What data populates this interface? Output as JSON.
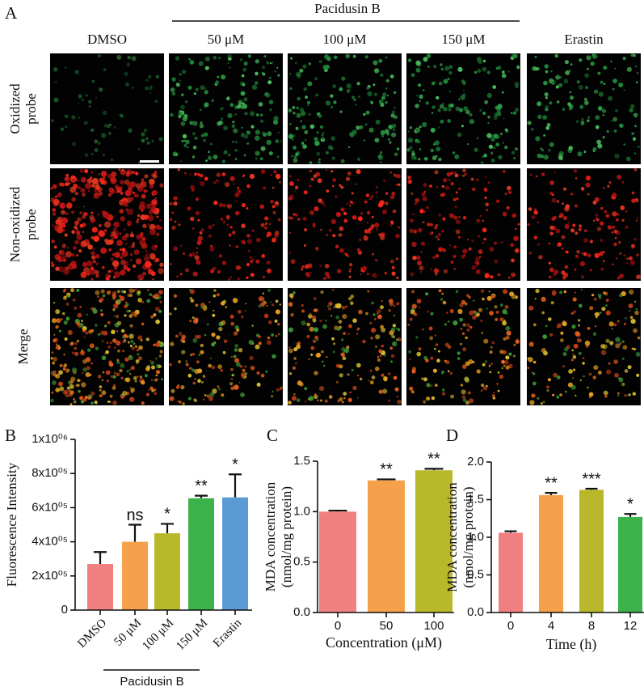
{
  "panel_a": {
    "label": "A",
    "group_label": "Pacidusin B",
    "columns": [
      "DMSO",
      "50 μM",
      "100 μM",
      "150 μM",
      "Erastin"
    ],
    "rows": [
      [
        "Oxidized",
        "probe"
      ],
      [
        "Non-oxidized",
        "probe"
      ],
      [
        "Merge"
      ]
    ]
  },
  "chart_data": [
    {
      "type": "bar",
      "panel_label": "B",
      "ylabel": [
        "Fluorescence Intensity"
      ],
      "categories": [
        "DMSO",
        "50 μM",
        "100 μM",
        "150 μM",
        "Erastin"
      ],
      "values": [
        270000,
        400000,
        450000,
        655000,
        660000
      ],
      "errors": [
        70000,
        100000,
        55000,
        15000,
        135000
      ],
      "annotations": [
        null,
        "ns",
        "*",
        "**",
        "*"
      ],
      "colors": [
        "#f08080",
        "#f5a04a",
        "#b8b82a",
        "#3cb34a",
        "#5b9bd5"
      ],
      "x_group_label": "Pacidusin B",
      "ylim": [
        0,
        1000000
      ],
      "yticks": [
        0,
        {
          "value": 200000,
          "label": "2x10⁰⁵"
        },
        {
          "value": 400000,
          "label": "4x10⁰⁵"
        },
        {
          "value": 600000,
          "label": "6x10⁰⁵"
        },
        {
          "value": 800000,
          "label": "8x10⁰⁵"
        },
        {
          "value": 1000000,
          "label": "1x10⁰⁶"
        }
      ]
    },
    {
      "type": "bar",
      "panel_label": "C",
      "ylabel": [
        "MDA concentration",
        "(nmol/mg protein)"
      ],
      "xlabel": "Concentration (μM)",
      "categories": [
        "0",
        "50",
        "100"
      ],
      "values": [
        1.0,
        1.31,
        1.41
      ],
      "errors": [
        0.01,
        0.01,
        0.015
      ],
      "annotations": [
        null,
        "**",
        "**"
      ],
      "colors": [
        "#f08080",
        "#f5a04a",
        "#b8b82a"
      ],
      "ylim": [
        0,
        1.5
      ],
      "yticks": [
        {
          "value": 0,
          "label": "0.0"
        },
        0.5,
        {
          "value": 1,
          "label": "1.0"
        },
        1.5
      ]
    },
    {
      "type": "bar",
      "panel_label": "D",
      "ylabel": [
        "MDA concentration",
        "(nmol/mg protein)"
      ],
      "xlabel": "Time (h)",
      "categories": [
        "0",
        "4",
        "8",
        "12"
      ],
      "values": [
        1.06,
        1.56,
        1.63,
        1.27
      ],
      "errors": [
        0.02,
        0.03,
        0.015,
        0.04
      ],
      "annotations": [
        null,
        "**",
        "***",
        "*"
      ],
      "colors": [
        "#f08080",
        "#f5a04a",
        "#b8b82a",
        "#3cb34a"
      ],
      "ylim": [
        0,
        2
      ],
      "yticks": [
        {
          "value": 0,
          "label": "0.0"
        },
        0.5,
        {
          "value": 1,
          "label": "1.0"
        },
        1.5,
        {
          "value": 2,
          "label": "2.0"
        }
      ]
    }
  ]
}
